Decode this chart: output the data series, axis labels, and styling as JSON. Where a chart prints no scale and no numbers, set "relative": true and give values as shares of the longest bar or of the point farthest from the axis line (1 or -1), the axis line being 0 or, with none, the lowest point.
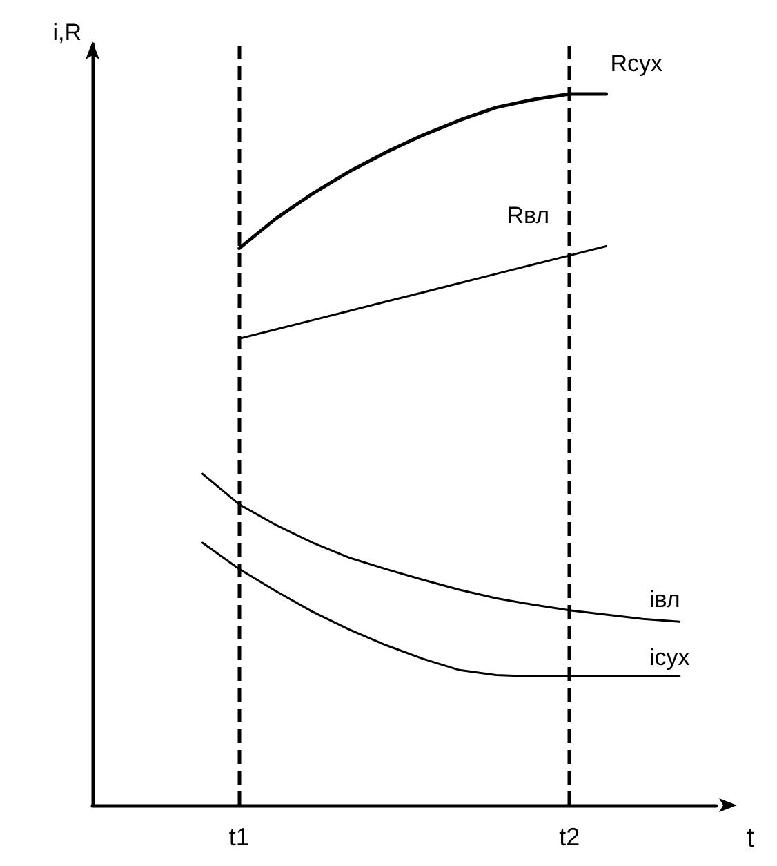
{
  "chart_data": {
    "type": "line",
    "relative": true,
    "xlabel": "t",
    "ylabel": "i,R",
    "grid": false,
    "legend": false,
    "marker": "none",
    "line_style": "solid",
    "categories": [
      null,
      null,
      null,
      null,
      "t1",
      null,
      null,
      null,
      null,
      null,
      null,
      null,
      null,
      "t2",
      null,
      null,
      null,
      null
    ],
    "ref_lines": [
      {
        "axis": "x",
        "value": "t1",
        "color": "#000000",
        "line_style": "dashed"
      },
      {
        "axis": "x",
        "value": "t2",
        "color": "#000000",
        "line_style": "dashed"
      }
    ],
    "series": [
      {
        "name": "Rсух",
        "color": "#000000",
        "values": [
          null,
          null,
          null,
          null,
          0.783,
          0.825,
          0.86,
          0.891,
          0.918,
          0.942,
          0.963,
          0.981,
          0.992,
          1,
          1,
          null,
          null,
          null
        ]
      },
      {
        "name": "Rвл",
        "color": "#000000",
        "values": [
          null,
          null,
          null,
          null,
          0.656,
          0.669,
          0.682,
          0.695,
          0.708,
          0.721,
          0.734,
          0.747,
          0.76,
          0.773,
          0.786,
          null,
          null,
          null
        ]
      },
      {
        "name": "iвл",
        "color": "#000000",
        "values": [
          null,
          null,
          null,
          0.466,
          0.423,
          0.394,
          0.369,
          0.348,
          0.332,
          0.317,
          0.303,
          0.291,
          0.282,
          0.274,
          0.268,
          0.262,
          0.258,
          null
        ]
      },
      {
        "name": "iсух",
        "color": "#000000",
        "values": [
          null,
          null,
          null,
          0.369,
          0.332,
          0.301,
          0.272,
          0.247,
          0.225,
          0.206,
          0.19,
          0.183,
          0.181,
          0.181,
          0.181,
          0.181,
          0.181,
          null
        ]
      }
    ]
  }
}
